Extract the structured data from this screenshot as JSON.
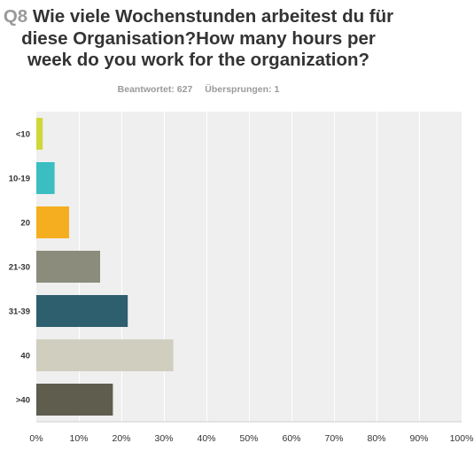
{
  "question": {
    "number": "Q8",
    "text": "Wie viele Wochenstunden arbeitest du für diese Organisation?How many hours per week do you work for the organization?"
  },
  "stats": {
    "answered_label": "Beantwortet:",
    "answered": "627",
    "skipped_label": "Übersprungen:",
    "skipped": "1"
  },
  "chart_data": {
    "type": "bar",
    "orientation": "horizontal",
    "categories": [
      "<10",
      "10-19",
      "20",
      "21-30",
      "31-39",
      "40",
      ">40"
    ],
    "values": [
      1.5,
      4.3,
      7.7,
      15.0,
      21.5,
      32.2,
      18.0
    ],
    "colors": [
      "#d0d73a",
      "#3bbec2",
      "#f5ae1f",
      "#8c8c7c",
      "#2d5f6e",
      "#d0cebf",
      "#5e5d4e"
    ],
    "xlim": [
      0,
      100
    ],
    "xticks": [
      0,
      10,
      20,
      30,
      40,
      50,
      60,
      70,
      80,
      90,
      100
    ],
    "xtick_labels": [
      "0%",
      "10%",
      "20%",
      "30%",
      "40%",
      "50%",
      "60%",
      "70%",
      "80%",
      "90%",
      "100%"
    ],
    "grid": true,
    "value_unit": "%"
  }
}
